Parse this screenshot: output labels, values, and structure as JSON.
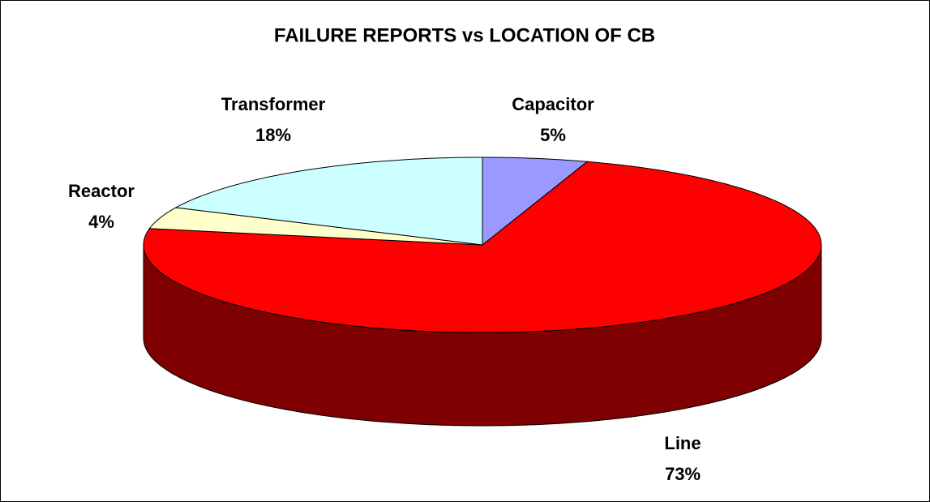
{
  "chart_data": {
    "type": "pie",
    "title": "FAILURE REPORTS vs LOCATION OF CB",
    "categories": [
      "Capacitor",
      "Line",
      "Reactor",
      "Transformer"
    ],
    "values": [
      5,
      73,
      4,
      18
    ],
    "value_labels": [
      "5%",
      "73%",
      "4%",
      "18%"
    ],
    "colors": [
      "#9999ff",
      "#ff0000",
      "#ffffcc",
      "#ccffff"
    ]
  }
}
